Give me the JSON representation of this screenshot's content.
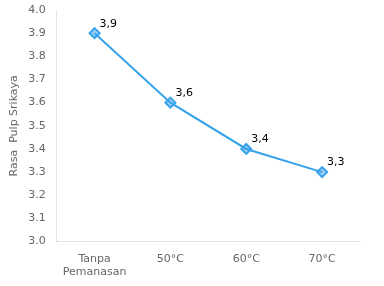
{
  "chart_data": {
    "type": "line",
    "categories": [
      "Tanpa\nPemanasan",
      "50°C",
      "60°C",
      "70°C"
    ],
    "values": [
      3.9,
      3.6,
      3.4,
      3.3
    ],
    "value_labels": [
      "3,9",
      "3,6",
      "3,4",
      "3,3"
    ],
    "data_labels": true,
    "ylabel": "Rasa  Pulp Srikaya",
    "ylim": [
      3.0,
      4.0
    ],
    "yticks": [
      {
        "value": 3.0,
        "label": "3.0"
      },
      3.1,
      3.2,
      3.3,
      3.4,
      3.5,
      3.6,
      3.7,
      3.8,
      3.9,
      {
        "value": 4.0,
        "label": "4.0"
      }
    ],
    "marker": "diamond",
    "grid": false
  }
}
